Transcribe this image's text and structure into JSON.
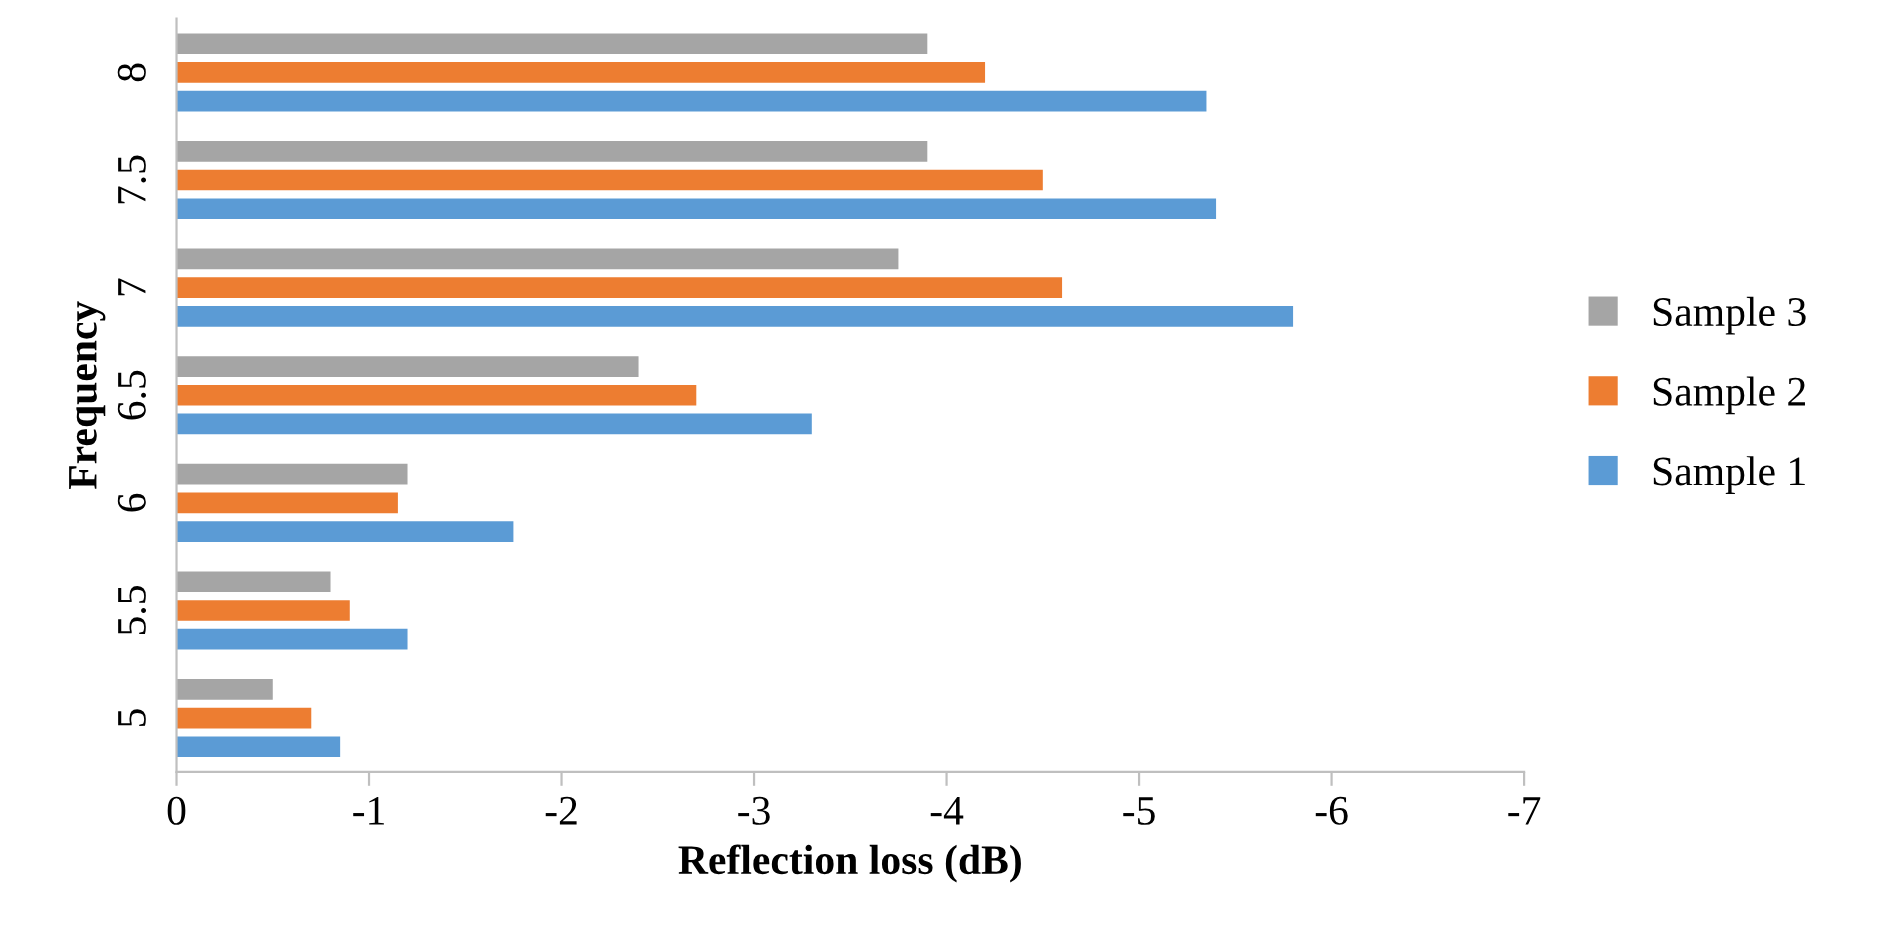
{
  "chart_data": {
    "type": "bar",
    "orientation": "horizontal",
    "xlabel": "Reflection loss (dB)",
    "ylabel": "Frequency",
    "categories": [
      "8",
      "7.5",
      "7",
      "6.5",
      "6",
      "5.5",
      "5"
    ],
    "series": [
      {
        "name": "Sample 1",
        "color": "#5b9bd5",
        "values": [
          -5.35,
          -5.4,
          -5.8,
          -3.3,
          -1.75,
          -1.2,
          -0.85
        ]
      },
      {
        "name": "Sample 2",
        "color": "#ed7d31",
        "values": [
          -4.2,
          -4.5,
          -4.6,
          -2.7,
          -1.15,
          -0.9,
          -0.7
        ]
      },
      {
        "name": "Sample 3",
        "color": "#a5a5a5",
        "values": [
          -3.9,
          -3.9,
          -3.75,
          -2.4,
          -1.2,
          -0.8,
          -0.5
        ]
      }
    ],
    "xlim": [
      0,
      -7
    ],
    "xticks": [
      0,
      -1,
      -2,
      -3,
      -4,
      -5,
      -6,
      -7
    ],
    "grid": false,
    "legend": "right"
  }
}
